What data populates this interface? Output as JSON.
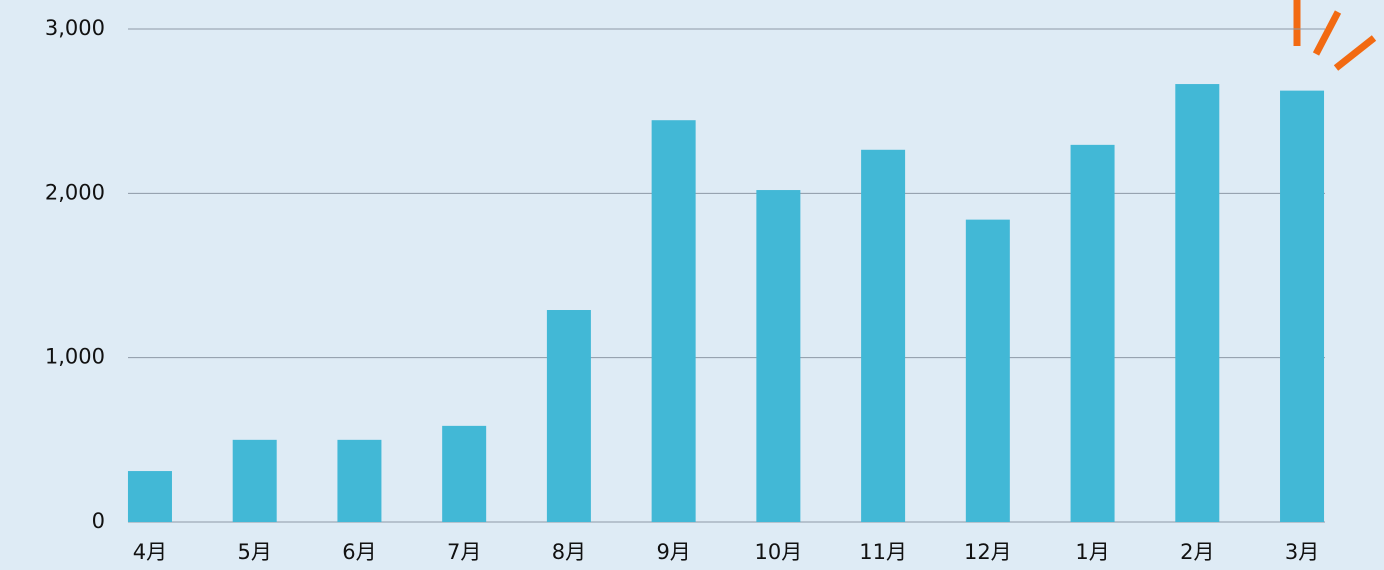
{
  "chart_data": {
    "type": "bar",
    "categories": [
      "4月",
      "5月",
      "6月",
      "7月",
      "8月",
      "9月",
      "10月",
      "11月",
      "12月",
      "1月",
      "2月",
      "3月"
    ],
    "values": [
      310,
      500,
      500,
      585,
      1290,
      2445,
      2020,
      2265,
      1840,
      2295,
      2665,
      2625
    ],
    "color": "#42b8d6",
    "ylim": [
      0,
      3000
    ],
    "yticks": [
      0,
      {
        "value": 1000,
        "label": "1,000"
      },
      {
        "value": 2000,
        "label": "2,000"
      },
      {
        "value": 3000,
        "label": "3,000"
      }
    ],
    "grid": true
  }
}
